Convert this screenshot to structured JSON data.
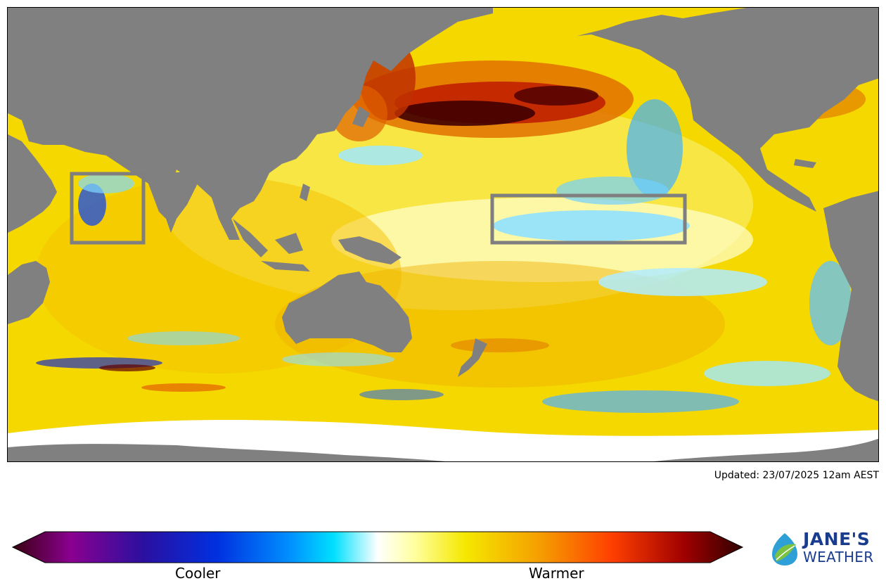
{
  "updated": "Updated: 23/07/2025 12am AEST",
  "colorbar": {
    "cool_label": "Cooler",
    "warm_label": "Warmer",
    "stops": [
      "#3a0010",
      "#8a0090",
      "#2a10a0",
      "#0030e0",
      "#0090ff",
      "#00e0ff",
      "#ffffff",
      "#ffffa0",
      "#f5e800",
      "#f5a000",
      "#ff4000",
      "#a00000",
      "#300000"
    ]
  },
  "map": {
    "land_color": "#808080",
    "ice_color": "#ffffff",
    "highlight_box_color": "#7f7f7f",
    "highlighted_regions": [
      "arabian-sea-box",
      "equatorial-pacific-box"
    ]
  },
  "logo": {
    "line1": "JANE'S",
    "line2": "WEATHER",
    "icon": "leaf-drop-icon"
  }
}
